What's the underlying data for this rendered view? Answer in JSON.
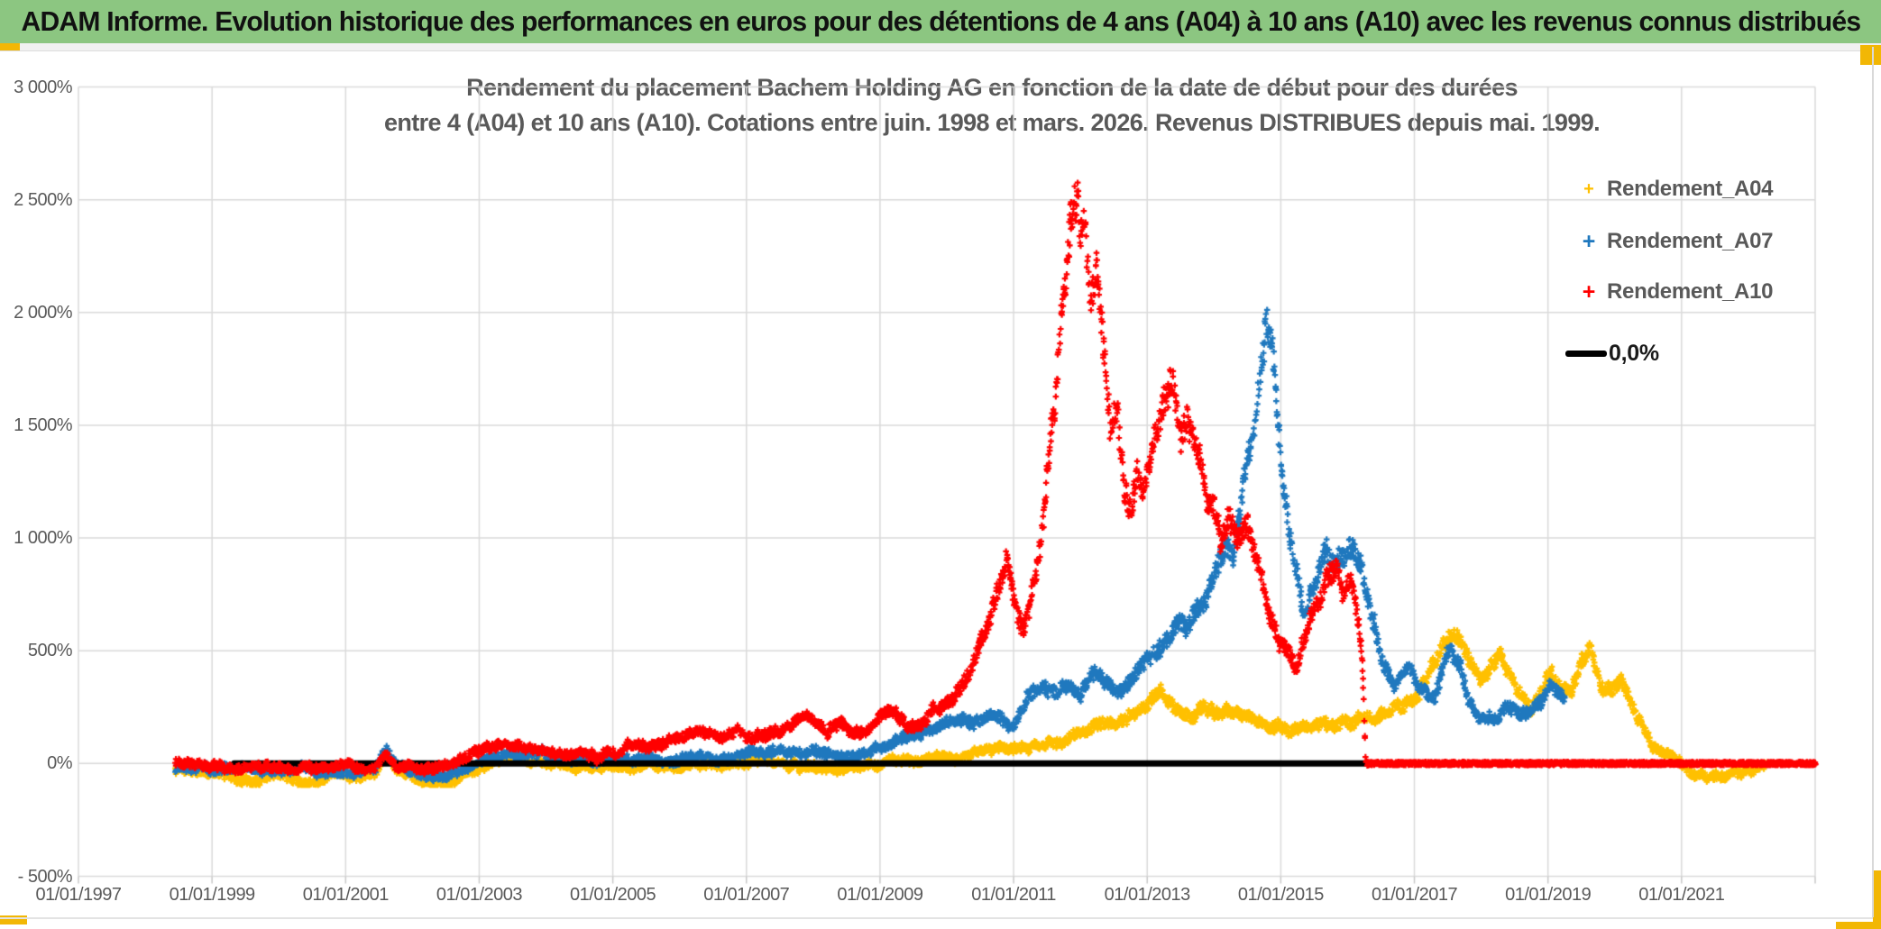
{
  "header": {
    "title": "ADAM Informe. Evolution historique des performances en euros pour des détentions de 4 ans (A04) à 10 ans (A10) avec les revenus connus distribués",
    "bg_color": "#8CC681",
    "accent_color": "#F2B705"
  },
  "chart": {
    "title_lines": [
      "Rendement du placement Bachem Holding AG en fonction de la date de début pour des durées",
      "entre 4 (A04) et 10 ans (A10). Cotations entre juin. 1998 et mars. 2026. Revenus DISTRIBUES depuis mai. 1999."
    ],
    "legend": [
      {
        "label": "Rendement_A04",
        "marker": "plus",
        "color": "#FFC000"
      },
      {
        "label": "Rendement_A07",
        "marker": "plus",
        "color": "#1F78BE"
      },
      {
        "label": "Rendement_A10",
        "marker": "plus",
        "color": "#FF0000"
      },
      {
        "label": "0,0%",
        "marker": "line",
        "color": "#000000"
      }
    ],
    "y_axis": {
      "labels": [
        "3 000%",
        "2 500%",
        "2 000%",
        "1 500%",
        "1 000%",
        "500%",
        "0%",
        "- 500%"
      ],
      "values": [
        3000,
        2500,
        2000,
        1500,
        1000,
        500,
        0,
        -500
      ]
    },
    "x_axis": {
      "labels": [
        "01/01/1997",
        "01/01/1999",
        "01/01/2001",
        "01/01/2003",
        "01/01/2005",
        "01/01/2007",
        "01/01/2009",
        "01/01/2011",
        "01/01/2013",
        "01/01/2015",
        "01/01/2017",
        "01/01/2019",
        "01/01/2021"
      ],
      "tick_years": [
        1997,
        1999,
        2001,
        2003,
        2005,
        2007,
        2009,
        2011,
        2013,
        2015,
        2017,
        2019,
        2021
      ]
    },
    "colors": {
      "gridline": "#DADADA",
      "tick": "#C9C9C9",
      "axis_text": "#595959",
      "title_text": "#595959"
    }
  },
  "chart_data": {
    "type": "scatter",
    "x_range": [
      1997,
      2023
    ],
    "y_range": [
      -500,
      3000
    ],
    "x_tick_step_years": 2,
    "y_tick_step_pct": 500,
    "grid": true,
    "legend_position": "top-right-inside",
    "zero_line": {
      "label": "0,0%",
      "value": 0,
      "from_year": 1999.33,
      "to_year": 2016.3,
      "color": "#000000"
    },
    "series": [
      {
        "name": "Rendement_A04",
        "color": "#FFC000",
        "marker": "plus",
        "seed": 11,
        "points": [
          [
            1998.45,
            -30
          ],
          [
            1998.8,
            -55
          ],
          [
            1999.2,
            -50
          ],
          [
            1999.6,
            -70
          ],
          [
            2000,
            -65
          ],
          [
            2000.4,
            -75
          ],
          [
            2000.8,
            -60
          ],
          [
            2001.2,
            -65
          ],
          [
            2001.45,
            -50
          ],
          [
            2001.6,
            40
          ],
          [
            2001.8,
            -40
          ],
          [
            2002.2,
            -70
          ],
          [
            2002.5,
            -80
          ],
          [
            2002.8,
            -45
          ],
          [
            2003.1,
            -10
          ],
          [
            2003.5,
            15
          ],
          [
            2003.9,
            5
          ],
          [
            2004.3,
            -15
          ],
          [
            2004.7,
            -25
          ],
          [
            2005.1,
            -20
          ],
          [
            2005.5,
            -10
          ],
          [
            2005.9,
            -15
          ],
          [
            2006.3,
            -5
          ],
          [
            2006.7,
            -10
          ],
          [
            2007.1,
            0
          ],
          [
            2007.5,
            10
          ],
          [
            2007.9,
            0
          ],
          [
            2008.3,
            -10
          ],
          [
            2008.7,
            -5
          ],
          [
            2009.1,
            10
          ],
          [
            2009.5,
            5
          ],
          [
            2009.9,
            20
          ],
          [
            2010.3,
            30
          ],
          [
            2010.7,
            45
          ],
          [
            2011.1,
            40
          ],
          [
            2011.5,
            70
          ],
          [
            2011.9,
            110
          ],
          [
            2012.3,
            160
          ],
          [
            2012.7,
            210
          ],
          [
            2013,
            260
          ],
          [
            2013.2,
            300
          ],
          [
            2013.4,
            250
          ],
          [
            2013.6,
            220
          ],
          [
            2013.8,
            265
          ],
          [
            2014,
            235
          ],
          [
            2014.2,
            255
          ],
          [
            2014.4,
            215
          ],
          [
            2014.6,
            185
          ],
          [
            2014.8,
            170
          ],
          [
            2015,
            165
          ],
          [
            2015.2,
            135
          ],
          [
            2015.4,
            155
          ],
          [
            2015.6,
            180
          ],
          [
            2015.8,
            170
          ],
          [
            2016,
            195
          ],
          [
            2016.2,
            210
          ],
          [
            2016.4,
            185
          ],
          [
            2016.6,
            215
          ],
          [
            2016.8,
            250
          ],
          [
            2017,
            300
          ],
          [
            2017.2,
            380
          ],
          [
            2017.4,
            520
          ],
          [
            2017.55,
            630
          ],
          [
            2017.7,
            560
          ],
          [
            2017.85,
            430
          ],
          [
            2018,
            360
          ],
          [
            2018.15,
            420
          ],
          [
            2018.3,
            480
          ],
          [
            2018.45,
            390
          ],
          [
            2018.6,
            310
          ],
          [
            2018.75,
            255
          ],
          [
            2018.9,
            330
          ],
          [
            2019.05,
            420
          ],
          [
            2019.2,
            330
          ],
          [
            2019.35,
            310
          ],
          [
            2019.5,
            450
          ],
          [
            2019.65,
            480
          ],
          [
            2019.8,
            330
          ],
          [
            2019.95,
            320
          ],
          [
            2020.1,
            360
          ],
          [
            2020.25,
            270
          ],
          [
            2020.4,
            180
          ],
          [
            2020.55,
            90
          ],
          [
            2020.7,
            40
          ],
          [
            2020.85,
            20
          ],
          [
            2021,
            -10
          ],
          [
            2021.2,
            -45
          ],
          [
            2021.4,
            -55
          ],
          [
            2021.6,
            -60
          ],
          [
            2021.8,
            -45
          ],
          [
            2022,
            -30
          ],
          [
            2022.25,
            -10
          ]
        ]
      },
      {
        "name": "Rendement_A07",
        "color": "#1F78BE",
        "marker": "plus",
        "seed": 22,
        "points": [
          [
            1998.45,
            -20
          ],
          [
            1998.8,
            -40
          ],
          [
            1999.2,
            -30
          ],
          [
            1999.6,
            -45
          ],
          [
            2000,
            -40
          ],
          [
            2000.5,
            -30
          ],
          [
            2001,
            -35
          ],
          [
            2001.45,
            -20
          ],
          [
            2001.6,
            75
          ],
          [
            2001.8,
            -10
          ],
          [
            2002.2,
            -45
          ],
          [
            2002.5,
            -55
          ],
          [
            2002.8,
            -20
          ],
          [
            2003.1,
            25
          ],
          [
            2003.5,
            55
          ],
          [
            2003.9,
            40
          ],
          [
            2004.3,
            20
          ],
          [
            2004.7,
            10
          ],
          [
            2005.1,
            15
          ],
          [
            2005.5,
            25
          ],
          [
            2005.9,
            20
          ],
          [
            2006.3,
            30
          ],
          [
            2006.7,
            25
          ],
          [
            2007.1,
            40
          ],
          [
            2007.5,
            55
          ],
          [
            2007.9,
            45
          ],
          [
            2008.3,
            30
          ],
          [
            2008.7,
            40
          ],
          [
            2009,
            60
          ],
          [
            2009.3,
            110
          ],
          [
            2009.6,
            130
          ],
          [
            2009.9,
            170
          ],
          [
            2010.1,
            200
          ],
          [
            2010.4,
            170
          ],
          [
            2010.7,
            230
          ],
          [
            2011,
            160
          ],
          [
            2011.2,
            280
          ],
          [
            2011.4,
            330
          ],
          [
            2011.6,
            350
          ],
          [
            2011.8,
            370
          ],
          [
            2012,
            300
          ],
          [
            2012.2,
            400
          ],
          [
            2012.4,
            380
          ],
          [
            2012.6,
            350
          ],
          [
            2012.8,
            390
          ],
          [
            2013,
            440
          ],
          [
            2013.2,
            540
          ],
          [
            2013.4,
            620
          ],
          [
            2013.6,
            570
          ],
          [
            2013.8,
            710
          ],
          [
            2014,
            870
          ],
          [
            2014.15,
            960
          ],
          [
            2014.3,
            890
          ],
          [
            2014.45,
            1250
          ],
          [
            2014.6,
            1500
          ],
          [
            2014.7,
            1800
          ],
          [
            2014.8,
            2030
          ],
          [
            2014.9,
            1750
          ],
          [
            2015,
            1350
          ],
          [
            2015.1,
            1100
          ],
          [
            2015.2,
            900
          ],
          [
            2015.35,
            640
          ],
          [
            2015.5,
            800
          ],
          [
            2015.65,
            940
          ],
          [
            2015.8,
            850
          ],
          [
            2015.95,
            880
          ],
          [
            2016.1,
            950
          ],
          [
            2016.2,
            850
          ],
          [
            2016.35,
            620
          ],
          [
            2016.5,
            480
          ],
          [
            2016.7,
            370
          ],
          [
            2016.9,
            420
          ],
          [
            2017.1,
            330
          ],
          [
            2017.3,
            280
          ],
          [
            2017.5,
            500
          ],
          [
            2017.65,
            460
          ],
          [
            2017.8,
            300
          ],
          [
            2018,
            200
          ],
          [
            2018.2,
            210
          ],
          [
            2018.4,
            260
          ],
          [
            2018.6,
            240
          ],
          [
            2018.8,
            280
          ],
          [
            2019,
            350
          ],
          [
            2019.1,
            330
          ],
          [
            2019.25,
            290
          ]
        ]
      },
      {
        "name": "Rendement_A10",
        "color": "#FF0000",
        "marker": "plus",
        "seed": 33,
        "flat_after": 2016.3,
        "points": [
          [
            1998.45,
            15
          ],
          [
            1998.7,
            5
          ],
          [
            1999,
            -10
          ],
          [
            1999.3,
            -25
          ],
          [
            1999.7,
            -20
          ],
          [
            2000,
            -35
          ],
          [
            2000.4,
            -30
          ],
          [
            2000.8,
            -20
          ],
          [
            2001.1,
            -25
          ],
          [
            2001.45,
            -15
          ],
          [
            2001.6,
            55
          ],
          [
            2001.75,
            -5
          ],
          [
            2002.1,
            -30
          ],
          [
            2002.45,
            -25
          ],
          [
            2002.7,
            10
          ],
          [
            2003,
            60
          ],
          [
            2003.3,
            75
          ],
          [
            2003.6,
            80
          ],
          [
            2003.9,
            55
          ],
          [
            2004.2,
            45
          ],
          [
            2004.5,
            55
          ],
          [
            2004.8,
            45
          ],
          [
            2005.1,
            50
          ],
          [
            2005.4,
            65
          ],
          [
            2005.7,
            75
          ],
          [
            2006,
            95
          ],
          [
            2006.3,
            115
          ],
          [
            2006.6,
            105
          ],
          [
            2006.9,
            135
          ],
          [
            2007.2,
            120
          ],
          [
            2007.5,
            150
          ],
          [
            2007.8,
            195
          ],
          [
            2008,
            225
          ],
          [
            2008.2,
            160
          ],
          [
            2008.4,
            190
          ],
          [
            2008.6,
            150
          ],
          [
            2008.8,
            170
          ],
          [
            2009,
            215
          ],
          [
            2009.2,
            235
          ],
          [
            2009.4,
            185
          ],
          [
            2009.6,
            200
          ],
          [
            2009.8,
            240
          ],
          [
            2010,
            255
          ],
          [
            2010.2,
            330
          ],
          [
            2010.4,
            450
          ],
          [
            2010.6,
            600
          ],
          [
            2010.75,
            750
          ],
          [
            2010.9,
            890
          ],
          [
            2011.05,
            650
          ],
          [
            2011.15,
            580
          ],
          [
            2011.3,
            800
          ],
          [
            2011.45,
            1100
          ],
          [
            2011.55,
            1450
          ],
          [
            2011.65,
            1750
          ],
          [
            2011.75,
            2100
          ],
          [
            2011.85,
            2380
          ],
          [
            2011.95,
            2470
          ],
          [
            2012,
            2250
          ],
          [
            2012.05,
            2420
          ],
          [
            2012.15,
            2050
          ],
          [
            2012.25,
            2150
          ],
          [
            2012.35,
            1800
          ],
          [
            2012.45,
            1500
          ],
          [
            2012.55,
            1620
          ],
          [
            2012.65,
            1250
          ],
          [
            2012.75,
            1120
          ],
          [
            2012.85,
            1300
          ],
          [
            2012.95,
            1180
          ],
          [
            2013.1,
            1400
          ],
          [
            2013.25,
            1580
          ],
          [
            2013.4,
            1660
          ],
          [
            2013.5,
            1480
          ],
          [
            2013.6,
            1540
          ],
          [
            2013.75,
            1380
          ],
          [
            2013.9,
            1130
          ],
          [
            2014,
            1160
          ],
          [
            2014.1,
            1010
          ],
          [
            2014.2,
            1100
          ],
          [
            2014.35,
            980
          ],
          [
            2014.5,
            1050
          ],
          [
            2014.65,
            900
          ],
          [
            2014.8,
            700
          ],
          [
            2014.95,
            560
          ],
          [
            2015.1,
            490
          ],
          [
            2015.25,
            440
          ],
          [
            2015.4,
            620
          ],
          [
            2015.55,
            720
          ],
          [
            2015.7,
            800
          ],
          [
            2015.85,
            860
          ],
          [
            2015.95,
            700
          ],
          [
            2016.05,
            790
          ],
          [
            2016.15,
            620
          ],
          [
            2016.22,
            450
          ],
          [
            2016.27,
            0
          ],
          [
            2023,
            0
          ]
        ]
      }
    ]
  }
}
